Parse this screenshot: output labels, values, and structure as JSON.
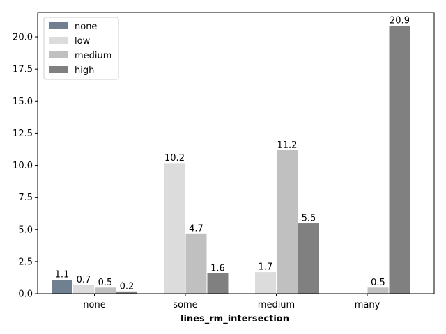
{
  "chart_data": {
    "type": "bar",
    "categories": [
      "none",
      "some",
      "medium",
      "many"
    ],
    "series": [
      {
        "name": "none",
        "color": "#708090",
        "values": [
          1.1,
          0,
          0,
          0
        ]
      },
      {
        "name": "low",
        "color": "#dcdcdc",
        "values": [
          0.7,
          10.2,
          1.7,
          0
        ]
      },
      {
        "name": "medium",
        "color": "#c0c0c0",
        "values": [
          0.5,
          4.7,
          11.2,
          0.5
        ]
      },
      {
        "name": "high",
        "color": "#808080",
        "values": [
          0.2,
          1.6,
          5.5,
          20.9
        ]
      }
    ],
    "data_labels": [
      [
        "1.1",
        "",
        "",
        ""
      ],
      [
        "0.7",
        "10.2",
        "1.7",
        ""
      ],
      [
        "0.5",
        "4.7",
        "11.2",
        "0.5"
      ],
      [
        "0.2",
        "1.6",
        "5.5",
        "20.9"
      ]
    ],
    "yticks": [
      "0.0",
      "2.5",
      "5.0",
      "7.5",
      "10.0",
      "12.5",
      "15.0",
      "17.5",
      "20.0"
    ],
    "ylim": [
      0,
      21.9
    ],
    "xlabel": "lines_rm_intersection",
    "ylabel": "",
    "title": "",
    "legend_position": "top-left",
    "grid": false
  }
}
